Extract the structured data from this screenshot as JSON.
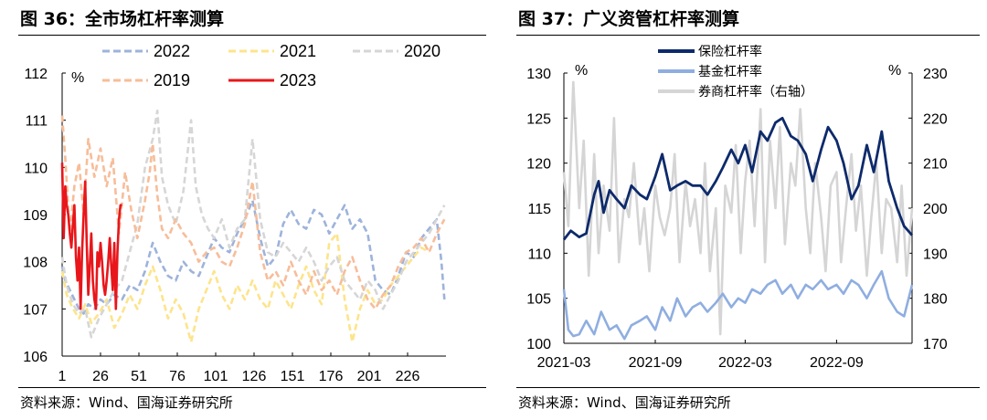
{
  "left": {
    "title": "图 36：全市场杠杆率测算",
    "source": "资料来源：Wind、国海证券研究所"
  },
  "right": {
    "title": "图 37：广义资管杠杆率测算",
    "source": "资料来源：Wind、国海证券研究所"
  },
  "colors": {
    "y2022": "#9db3db",
    "y2021": "#fde48b",
    "y2020": "#d6d6d6",
    "y2019": "#f7bd99",
    "y2023": "#e8161b",
    "insurance": "#0d2a6b",
    "fund": "#8faee0",
    "broker": "#d5d5d5"
  },
  "chart_data": [
    {
      "type": "line",
      "title": "全市场杠杆率测算",
      "ylabel": "%",
      "ylim": [
        106,
        112
      ],
      "yticks": [
        106,
        107,
        108,
        109,
        110,
        111,
        112
      ],
      "xlim": [
        1,
        251
      ],
      "xticks": [
        1,
        26,
        51,
        76,
        101,
        126,
        151,
        176,
        201,
        226
      ],
      "legend_position": "top",
      "grid": false,
      "series": [
        {
          "name": "2022",
          "style": "dashed",
          "color_key": "y2022",
          "x": [
            1,
            3,
            6,
            9,
            12,
            15,
            18,
            22,
            26,
            30,
            35,
            40,
            45,
            50,
            55,
            60,
            65,
            70,
            75,
            80,
            85,
            90,
            95,
            100,
            105,
            110,
            115,
            120,
            125,
            130,
            135,
            140,
            145,
            150,
            155,
            160,
            165,
            170,
            175,
            180,
            185,
            190,
            195,
            200,
            205,
            210,
            215,
            220,
            225,
            230,
            235,
            240,
            245,
            248,
            250
          ],
          "values": [
            107.9,
            107.6,
            107.4,
            107.2,
            107.0,
            106.9,
            107.1,
            107.0,
            107.2,
            107.1,
            107.3,
            107.2,
            107.5,
            107.4,
            107.8,
            108.4,
            108.0,
            107.7,
            107.6,
            108.0,
            107.8,
            107.7,
            108.1,
            108.5,
            108.3,
            108.2,
            108.6,
            108.9,
            109.3,
            108.5,
            107.9,
            108.1,
            108.8,
            109.1,
            108.8,
            108.7,
            109.1,
            109.0,
            108.6,
            108.9,
            109.2,
            108.7,
            108.9,
            108.6,
            107.6,
            107.4,
            107.3,
            107.7,
            108.2,
            108.1,
            108.5,
            108.7,
            108.9,
            108.0,
            107.2
          ]
        },
        {
          "name": "2021",
          "style": "dashed",
          "color_key": "y2021",
          "x": [
            1,
            4,
            8,
            12,
            16,
            20,
            25,
            30,
            35,
            40,
            45,
            50,
            55,
            60,
            65,
            70,
            75,
            80,
            85,
            90,
            95,
            100,
            105,
            110,
            115,
            120,
            125,
            130,
            135,
            140,
            145,
            150,
            155,
            160,
            165,
            170,
            175,
            180,
            185,
            190,
            195,
            200,
            205,
            210,
            215,
            220,
            225,
            230,
            235,
            240
          ],
          "values": [
            107.8,
            107.3,
            107.0,
            106.8,
            107.1,
            106.7,
            106.9,
            107.2,
            106.6,
            106.9,
            107.3,
            107.0,
            107.5,
            107.9,
            107.4,
            106.8,
            107.2,
            106.9,
            106.3,
            107.0,
            107.4,
            107.8,
            107.3,
            107.0,
            107.5,
            107.2,
            107.6,
            107.2,
            107.0,
            107.6,
            107.3,
            107.0,
            107.5,
            107.9,
            107.4,
            107.1,
            108.4,
            108.6,
            107.2,
            106.3,
            107.0,
            107.4,
            107.1,
            107.2,
            107.5,
            107.7,
            107.9,
            108.1,
            108.3,
            108.2
          ]
        },
        {
          "name": "2020",
          "style": "dashed",
          "color_key": "y2020",
          "x": [
            1,
            4,
            8,
            12,
            16,
            20,
            25,
            30,
            35,
            40,
            45,
            50,
            55,
            60,
            63,
            66,
            70,
            75,
            80,
            85,
            88,
            92,
            96,
            100,
            105,
            110,
            115,
            120,
            125,
            130,
            135,
            140,
            145,
            150,
            155,
            160,
            165,
            170,
            175,
            180,
            185,
            190,
            195,
            200,
            205,
            210,
            215,
            220,
            225,
            230,
            235,
            240,
            245,
            250
          ],
          "values": [
            108.1,
            107.5,
            107.1,
            106.9,
            107.0,
            106.4,
            106.8,
            107.1,
            107.4,
            107.6,
            108.2,
            108.8,
            110.0,
            110.6,
            111.2,
            109.8,
            109.2,
            108.8,
            109.5,
            111.0,
            109.6,
            109.0,
            108.7,
            108.5,
            108.9,
            108.3,
            108.7,
            108.9,
            110.6,
            108.9,
            108.2,
            108.1,
            108.4,
            108.2,
            108.0,
            108.3,
            108.0,
            107.6,
            107.9,
            108.1,
            107.6,
            107.4,
            107.2,
            107.6,
            107.4,
            107.0,
            107.3,
            107.6,
            108.0,
            108.2,
            108.4,
            108.6,
            108.9,
            109.2
          ]
        },
        {
          "name": "2019",
          "style": "dashed",
          "color_key": "y2019",
          "x": [
            1,
            3,
            6,
            9,
            12,
            15,
            18,
            22,
            26,
            30,
            34,
            38,
            42,
            46,
            50,
            55,
            58,
            60,
            63,
            66,
            70,
            75,
            80,
            85,
            90,
            95,
            100,
            105,
            110,
            115,
            120,
            125,
            130,
            135,
            140,
            145,
            150,
            155,
            160,
            165,
            170,
            175,
            180,
            185,
            190,
            195,
            200,
            205,
            210,
            215,
            220,
            225,
            230,
            235,
            240,
            245,
            250
          ],
          "values": [
            111.1,
            110.2,
            108.6,
            109.6,
            110.1,
            109.0,
            110.6,
            109.8,
            110.4,
            109.6,
            110.2,
            108.6,
            109.9,
            109.1,
            108.5,
            109.3,
            109.9,
            110.5,
            109.4,
            108.7,
            108.5,
            108.9,
            108.6,
            108.4,
            108.0,
            108.2,
            108.3,
            108.0,
            107.9,
            108.3,
            108.8,
            109.7,
            108.2,
            107.6,
            107.8,
            107.5,
            108.0,
            107.6,
            107.3,
            107.8,
            107.4,
            107.6,
            107.3,
            107.8,
            108.1,
            107.6,
            107.2,
            107.0,
            107.3,
            107.5,
            107.9,
            108.2,
            108.3,
            108.5,
            108.2,
            108.6,
            108.9
          ]
        },
        {
          "name": "2023",
          "style": "solid",
          "color_key": "y2023",
          "x": [
            1,
            2,
            3,
            4,
            5,
            6,
            7,
            8,
            9,
            10,
            11,
            12,
            13,
            14,
            15,
            16,
            17,
            18,
            19,
            20,
            21,
            22,
            23,
            24,
            25,
            26,
            27,
            28,
            29,
            30,
            31,
            32,
            33,
            34,
            35,
            36,
            37,
            38,
            39,
            40
          ],
          "values": [
            110.1,
            108.5,
            109.6,
            109.2,
            109.0,
            108.6,
            108.3,
            108.8,
            109.2,
            108.1,
            107.6,
            108.3,
            107.0,
            108.2,
            109.0,
            109.7,
            108.4,
            107.3,
            107.9,
            108.6,
            107.6,
            107.2,
            107.0,
            108.2,
            107.9,
            108.4,
            108.0,
            107.5,
            107.3,
            107.6,
            108.0,
            108.5,
            107.9,
            107.4,
            108.4,
            107.0,
            108.2,
            108.9,
            109.2,
            109.2
          ]
        }
      ]
    },
    {
      "type": "line",
      "title": "广义资管杠杆率测算",
      "ylabel": "%",
      "ylabel_right": "%",
      "ylim": [
        100,
        130
      ],
      "yticks": [
        100,
        105,
        110,
        115,
        120,
        125,
        130
      ],
      "ylim_right": [
        170,
        230
      ],
      "yticks_right": [
        170,
        180,
        190,
        200,
        210,
        220,
        230
      ],
      "xlim": [
        "2021-03-01",
        "2023-01-31"
      ],
      "xticks": [
        "2021-03",
        "2021-09",
        "2022-03",
        "2022-09"
      ],
      "legend_position": "top",
      "grid": false,
      "series": [
        {
          "name": "保险杠杆率",
          "axis": "left",
          "color_key": "insurance",
          "x": [
            "2021-03-01",
            "2021-03-15",
            "2021-04-01",
            "2021-04-15",
            "2021-05-01",
            "2021-05-10",
            "2021-05-20",
            "2021-06-01",
            "2021-06-15",
            "2021-07-01",
            "2021-07-15",
            "2021-08-01",
            "2021-08-15",
            "2021-09-01",
            "2021-09-15",
            "2021-10-01",
            "2021-10-15",
            "2021-11-01",
            "2021-11-15",
            "2021-12-01",
            "2021-12-15",
            "2022-01-01",
            "2022-01-15",
            "2022-02-01",
            "2022-02-15",
            "2022-03-01",
            "2022-03-15",
            "2022-04-01",
            "2022-04-15",
            "2022-05-01",
            "2022-05-15",
            "2022-06-01",
            "2022-06-15",
            "2022-07-01",
            "2022-07-15",
            "2022-08-01",
            "2022-08-15",
            "2022-09-01",
            "2022-09-15",
            "2022-10-01",
            "2022-10-15",
            "2022-11-01",
            "2022-11-15",
            "2022-12-01",
            "2022-12-15",
            "2023-01-01",
            "2023-01-15",
            "2023-01-31"
          ],
          "values": [
            111.5,
            112.5,
            111.8,
            112.2,
            116.5,
            118.0,
            114.5,
            117.0,
            116.0,
            115.0,
            117.5,
            116.5,
            116.0,
            118.5,
            121.0,
            117.0,
            117.5,
            118.0,
            117.5,
            117.5,
            116.5,
            118.0,
            119.5,
            121.5,
            120.0,
            122.0,
            119.0,
            123.5,
            122.5,
            124.5,
            125.0,
            123.0,
            122.5,
            121.0,
            118.0,
            121.5,
            124.0,
            122.5,
            120.0,
            116.0,
            117.5,
            122.0,
            119.0,
            123.5,
            118.0,
            115.0,
            113.0,
            112.0
          ]
        },
        {
          "name": "基金杠杆率",
          "axis": "left",
          "color_key": "fund",
          "x": [
            "2021-03-01",
            "2021-03-10",
            "2021-03-20",
            "2021-04-01",
            "2021-04-15",
            "2021-05-01",
            "2021-05-15",
            "2021-06-01",
            "2021-06-15",
            "2021-07-01",
            "2021-07-15",
            "2021-08-01",
            "2021-08-15",
            "2021-09-01",
            "2021-09-15",
            "2021-10-01",
            "2021-10-15",
            "2021-11-01",
            "2021-11-15",
            "2021-12-01",
            "2021-12-15",
            "2022-01-01",
            "2022-01-15",
            "2022-02-01",
            "2022-02-15",
            "2022-03-01",
            "2022-03-15",
            "2022-04-01",
            "2022-04-15",
            "2022-05-01",
            "2022-05-15",
            "2022-06-01",
            "2022-06-15",
            "2022-07-01",
            "2022-07-15",
            "2022-08-01",
            "2022-08-15",
            "2022-09-01",
            "2022-09-15",
            "2022-10-01",
            "2022-10-15",
            "2022-11-01",
            "2022-11-15",
            "2022-12-01",
            "2022-12-15",
            "2023-01-01",
            "2023-01-15",
            "2023-01-31"
          ],
          "values": [
            106.0,
            101.5,
            100.8,
            101.0,
            102.5,
            101.0,
            103.5,
            101.5,
            102.0,
            100.5,
            102.0,
            102.5,
            103.0,
            101.5,
            104.0,
            102.5,
            105.0,
            103.0,
            104.0,
            104.5,
            103.5,
            104.5,
            105.5,
            104.0,
            105.0,
            104.5,
            106.0,
            105.5,
            106.5,
            107.0,
            105.5,
            106.5,
            105.0,
            106.5,
            106.0,
            107.0,
            106.0,
            106.5,
            105.5,
            107.0,
            106.5,
            105.0,
            106.5,
            108.0,
            105.0,
            103.5,
            103.0,
            106.5
          ]
        },
        {
          "name": "券商杠杆率（右轴）",
          "axis": "right",
          "color_key": "broker",
          "x": [
            "2021-03-01",
            "2021-03-10",
            "2021-03-20",
            "2021-04-01",
            "2021-04-10",
            "2021-04-20",
            "2021-05-01",
            "2021-05-10",
            "2021-05-20",
            "2021-06-01",
            "2021-06-10",
            "2021-06-20",
            "2021-07-01",
            "2021-07-10",
            "2021-07-20",
            "2021-08-01",
            "2021-08-10",
            "2021-08-20",
            "2021-09-01",
            "2021-09-10",
            "2021-09-20",
            "2021-10-01",
            "2021-10-10",
            "2021-10-20",
            "2021-11-01",
            "2021-11-10",
            "2021-11-20",
            "2021-12-01",
            "2021-12-10",
            "2021-12-20",
            "2022-01-01",
            "2022-01-10",
            "2022-01-20",
            "2022-02-01",
            "2022-02-10",
            "2022-02-20",
            "2022-03-01",
            "2022-03-10",
            "2022-03-20",
            "2022-04-01",
            "2022-04-10",
            "2022-04-20",
            "2022-05-01",
            "2022-05-10",
            "2022-05-20",
            "2022-06-01",
            "2022-06-10",
            "2022-06-20",
            "2022-07-01",
            "2022-07-10",
            "2022-07-20",
            "2022-08-01",
            "2022-08-10",
            "2022-08-20",
            "2022-09-01",
            "2022-09-10",
            "2022-09-20",
            "2022-10-01",
            "2022-10-10",
            "2022-10-20",
            "2022-11-01",
            "2022-11-10",
            "2022-11-20",
            "2022-12-01",
            "2022-12-10",
            "2022-12-20",
            "2023-01-01",
            "2023-01-10",
            "2023-01-20",
            "2023-01-31"
          ],
          "values": [
            208,
            196,
            228,
            200,
            215,
            185,
            212,
            190,
            205,
            195,
            220,
            188,
            202,
            198,
            210,
            192,
            200,
            186,
            205,
            198,
            194,
            200,
            212,
            188,
            206,
            196,
            202,
            190,
            210,
            186,
            200,
            172,
            205,
            199,
            214,
            190,
            206,
            215,
            196,
            222,
            188,
            215,
            200,
            218,
            192,
            210,
            205,
            222,
            200,
            190,
            210,
            198,
            186,
            205,
            208,
            188,
            200,
            212,
            195,
            205,
            185,
            198,
            210,
            190,
            202,
            200,
            188,
            205,
            185,
            200
          ]
        }
      ]
    }
  ]
}
